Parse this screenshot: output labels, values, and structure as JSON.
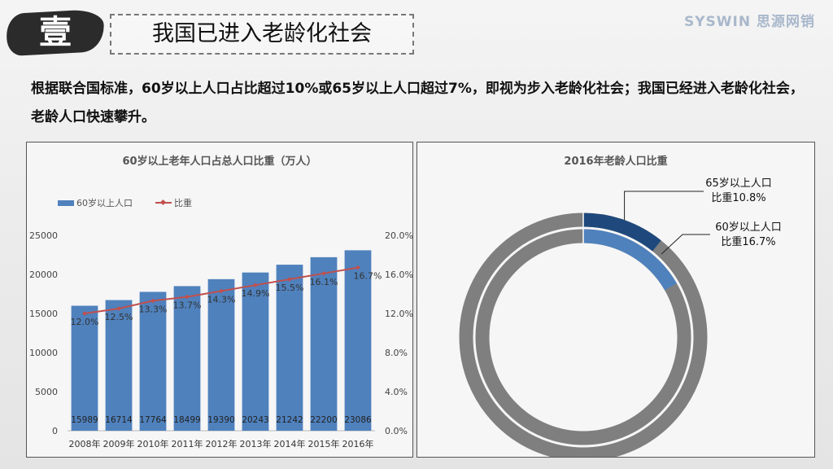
{
  "header": {
    "badge": "壹",
    "title": "我国已进入老龄化社会",
    "brand": "SYSWIN 思源网销"
  },
  "intro": "根据联合国标准，60岁以上人口占比超过10%或65岁以上人口超过7%，即视为步入老龄化社会；我国已经进入老龄化社会，老龄人口快速攀升。",
  "colors": {
    "bar": "#4f81bd",
    "line": "#c0504d",
    "ring_bg": "#7f7f7f",
    "ring_65": "#1f497d",
    "ring_60": "#4f81bd"
  },
  "chart_data": [
    {
      "type": "bar",
      "title": "60岁以上老年人口占总人口比重（万人）",
      "categories": [
        "2008年",
        "2009年",
        "2010年",
        "2011年",
        "2012年",
        "2013年",
        "2014年",
        "2015年",
        "2016年"
      ],
      "series": [
        {
          "name": "60岁以上人口",
          "type": "bar",
          "axis": "left",
          "values": [
            15989,
            16714,
            17764,
            18499,
            19390,
            20243,
            21242,
            22200,
            23086
          ],
          "labels": [
            "15989",
            "16714",
            "17764",
            "18499",
            "19390",
            "20243",
            "21242",
            "22200",
            "23086"
          ]
        },
        {
          "name": "比重",
          "type": "line",
          "axis": "right",
          "values": [
            12.0,
            12.5,
            13.3,
            13.7,
            14.3,
            14.9,
            15.5,
            16.1,
            16.7
          ],
          "labels": [
            "12.0%",
            "12.5%",
            "13.3%",
            "13.7%",
            "14.3%",
            "14.9%",
            "15.5%",
            "16.1%",
            "16.7%"
          ]
        }
      ],
      "ylim": [
        0,
        25000
      ],
      "yticks": [
        "0",
        "5000",
        "10000",
        "15000",
        "20000",
        "25000"
      ],
      "y2lim": [
        0,
        20
      ],
      "y2ticks": [
        "0.0%",
        "4.0%",
        "8.0%",
        "12.0%",
        "16.0%",
        "20.0%"
      ],
      "legend": "top-left",
      "grid": false
    },
    {
      "type": "pie",
      "title": "2016年老龄人口比重",
      "rings": [
        {
          "name": "65岁以上人口",
          "value": 10.8,
          "label": [
            "65岁以上人口",
            "比重10.8%"
          ]
        },
        {
          "name": "60岁以上人口",
          "value": 16.7,
          "label": [
            "60岁以上人口",
            "比重16.7%"
          ]
        }
      ]
    }
  ]
}
